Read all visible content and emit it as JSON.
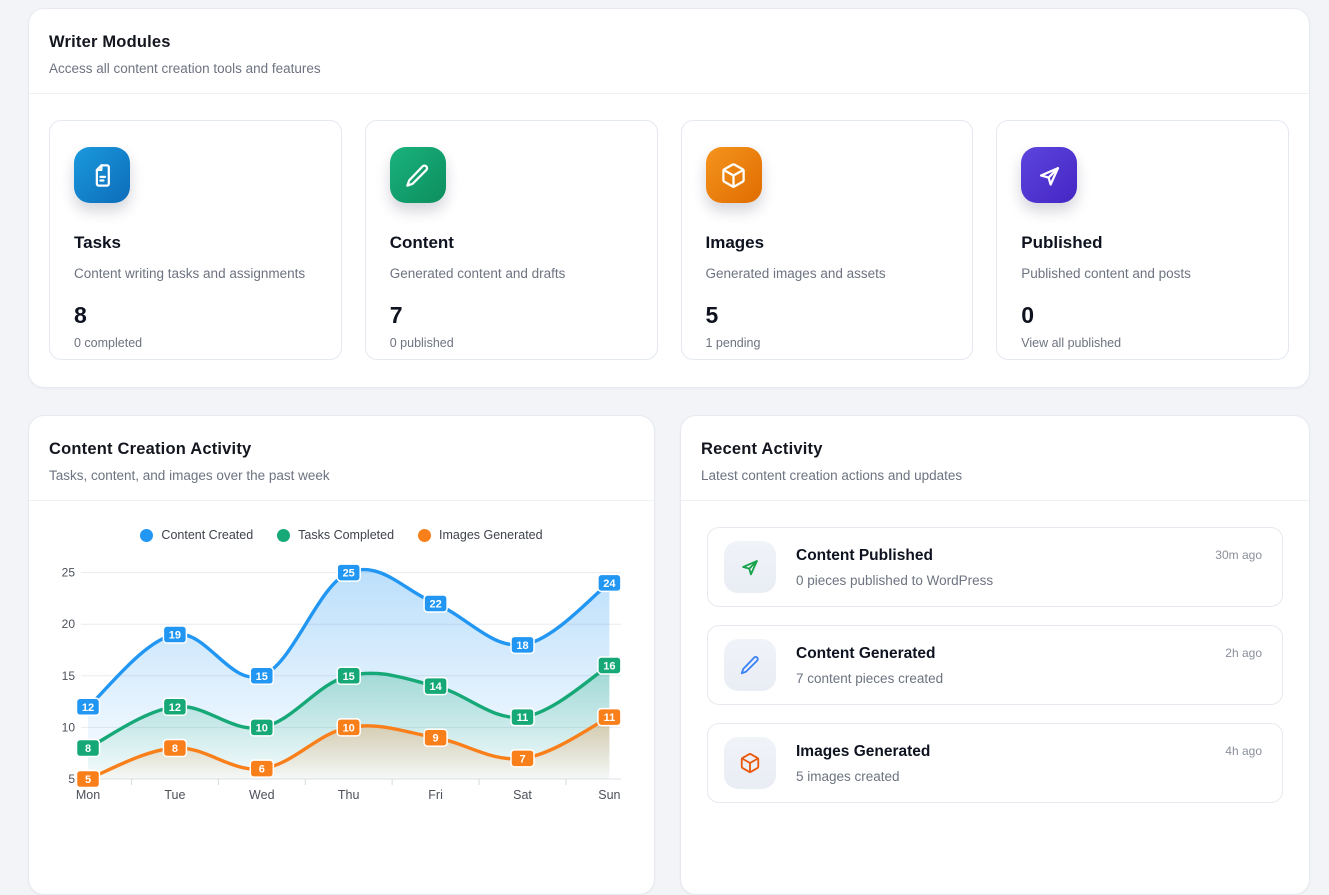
{
  "modules": {
    "title": "Writer Modules",
    "subtitle": "Access all content creation tools and features",
    "cards": [
      {
        "title": "Tasks",
        "description": "Content writing tasks and assignments",
        "count": "8",
        "sub": "0 completed",
        "icon": "document-icon",
        "gradient_from": "#1a99dd",
        "gradient_to": "#0d6cba"
      },
      {
        "title": "Content",
        "description": "Generated content and drafts",
        "count": "7",
        "sub": "0 published",
        "icon": "pencil-icon",
        "gradient_from": "#19b27d",
        "gradient_to": "#0d8e5f"
      },
      {
        "title": "Images",
        "description": "Generated images and assets",
        "count": "5",
        "sub": "1 pending",
        "icon": "cube-icon",
        "gradient_from": "#f5941d",
        "gradient_to": "#e06c00"
      },
      {
        "title": "Published",
        "description": "Published content and posts",
        "count": "0",
        "sub": "View all published",
        "icon": "send-icon",
        "gradient_from": "#5d45dd",
        "gradient_to": "#4526c4"
      }
    ]
  },
  "chart_panel": {
    "title": "Content Creation Activity",
    "subtitle": "Tasks, content, and images over the past week"
  },
  "chart_data": {
    "type": "line",
    "x": [
      "Mon",
      "Tue",
      "Wed",
      "Thu",
      "Fri",
      "Sat",
      "Sun"
    ],
    "series": [
      {
        "name": "Content Created",
        "color": "#2196f3",
        "values": [
          12,
          19,
          15,
          25,
          22,
          18,
          24
        ]
      },
      {
        "name": "Tasks Completed",
        "color": "#16a877",
        "values": [
          8,
          12,
          10,
          15,
          14,
          11,
          16
        ]
      },
      {
        "name": "Images Generated",
        "color": "#f97f1b",
        "values": [
          5,
          8,
          6,
          10,
          9,
          7,
          11
        ]
      }
    ],
    "ylim": [
      5,
      25
    ],
    "yticks": [
      5,
      10,
      15,
      20,
      25
    ],
    "grid": true,
    "area": true,
    "point_labels": true,
    "legend_position": "top"
  },
  "activity": {
    "title": "Recent Activity",
    "subtitle": "Latest content creation actions and updates",
    "items": [
      {
        "title": "Content Published",
        "description": "0 pieces published to WordPress",
        "time": "30m ago",
        "icon": "send-icon",
        "icon_color": "#16a34a"
      },
      {
        "title": "Content Generated",
        "description": "7 content pieces created",
        "time": "2h ago",
        "icon": "pencil-icon",
        "icon_color": "#3b82f6"
      },
      {
        "title": "Images Generated",
        "description": "5 images created",
        "time": "4h ago",
        "icon": "cube-icon",
        "icon_color": "#ea580c"
      }
    ]
  }
}
